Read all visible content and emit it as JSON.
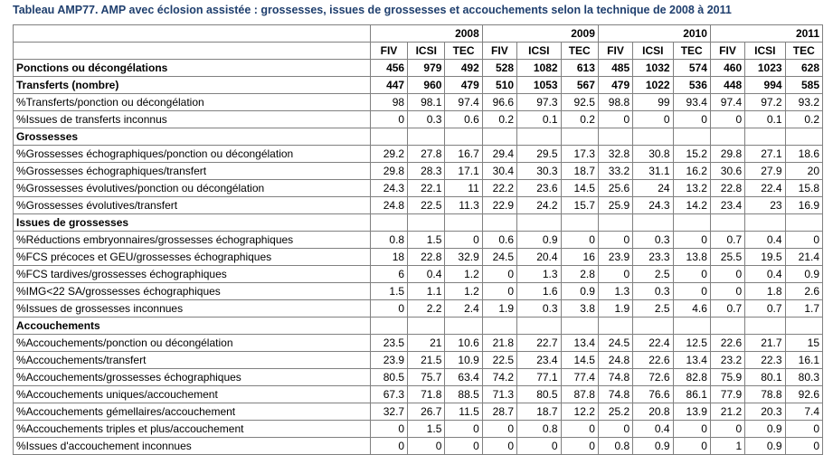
{
  "title": "Tableau AMP77. AMP avec éclosion assistée : grossesses, issues de grossesses et accouchements selon la technique de 2008 à 2011",
  "years": [
    "2008",
    "2009",
    "2010",
    "2011"
  ],
  "techniques": [
    "FIV",
    "ICSI",
    "TEC"
  ],
  "rows": [
    {
      "label": "Ponctions ou décongélations",
      "bold": true,
      "values": [
        "456",
        "979",
        "492",
        "528",
        "1082",
        "613",
        "485",
        "1032",
        "574",
        "460",
        "1023",
        "628"
      ]
    },
    {
      "label": "Transferts (nombre)",
      "bold": true,
      "values": [
        "447",
        "960",
        "479",
        "510",
        "1053",
        "567",
        "479",
        "1022",
        "536",
        "448",
        "994",
        "585"
      ]
    },
    {
      "label": "%Transferts/ponction ou décongélation",
      "values": [
        "98",
        "98.1",
        "97.4",
        "96.6",
        "97.3",
        "92.5",
        "98.8",
        "99",
        "93.4",
        "97.4",
        "97.2",
        "93.2"
      ]
    },
    {
      "label": "%Issues de transferts inconnus",
      "values": [
        "0",
        "0.3",
        "0.6",
        "0.2",
        "0.1",
        "0.2",
        "0",
        "0",
        "0",
        "0",
        "0.1",
        "0.2"
      ]
    },
    {
      "label": "Grossesses",
      "section": true,
      "values": [
        "",
        "",
        "",
        "",
        "",
        "",
        "",
        "",
        "",
        "",
        "",
        ""
      ]
    },
    {
      "label": "%Grossesses échographiques/ponction ou décongélation",
      "values": [
        "29.2",
        "27.8",
        "16.7",
        "29.4",
        "29.5",
        "17.3",
        "32.8",
        "30.8",
        "15.2",
        "29.8",
        "27.1",
        "18.6"
      ]
    },
    {
      "label": "%Grossesses échographiques/transfert",
      "values": [
        "29.8",
        "28.3",
        "17.1",
        "30.4",
        "30.3",
        "18.7",
        "33.2",
        "31.1",
        "16.2",
        "30.6",
        "27.9",
        "20"
      ]
    },
    {
      "label": "%Grossesses évolutives/ponction ou décongélation",
      "values": [
        "24.3",
        "22.1",
        "11",
        "22.2",
        "23.6",
        "14.5",
        "25.6",
        "24",
        "13.2",
        "22.8",
        "22.4",
        "15.8"
      ]
    },
    {
      "label": "%Grossesses évolutives/transfert",
      "values": [
        "24.8",
        "22.5",
        "11.3",
        "22.9",
        "24.2",
        "15.7",
        "25.9",
        "24.3",
        "14.2",
        "23.4",
        "23",
        "16.9"
      ]
    },
    {
      "label": "Issues de grossesses",
      "section": true,
      "values": [
        "",
        "",
        "",
        "",
        "",
        "",
        "",
        "",
        "",
        "",
        "",
        ""
      ]
    },
    {
      "label": "%Réductions embryonnaires/grossesses échographiques",
      "values": [
        "0.8",
        "1.5",
        "0",
        "0.6",
        "0.9",
        "0",
        "0",
        "0.3",
        "0",
        "0.7",
        "0.4",
        "0"
      ]
    },
    {
      "label": "%FCS précoces et GEU/grossesses échographiques",
      "values": [
        "18",
        "22.8",
        "32.9",
        "24.5",
        "20.4",
        "16",
        "23.9",
        "23.3",
        "13.8",
        "25.5",
        "19.5",
        "21.4"
      ]
    },
    {
      "label": "%FCS tardives/grossesses échographiques",
      "values": [
        "6",
        "0.4",
        "1.2",
        "0",
        "1.3",
        "2.8",
        "0",
        "2.5",
        "0",
        "0",
        "0.4",
        "0.9"
      ]
    },
    {
      "label": "%IMG<22 SA/grossesses échographiques",
      "values": [
        "1.5",
        "1.1",
        "1.2",
        "0",
        "1.6",
        "0.9",
        "1.3",
        "0.3",
        "0",
        "0",
        "1.8",
        "2.6"
      ]
    },
    {
      "label": "%Issues de grossesses inconnues",
      "values": [
        "0",
        "2.2",
        "2.4",
        "1.9",
        "0.3",
        "3.8",
        "1.9",
        "2.5",
        "4.6",
        "0.7",
        "0.7",
        "1.7"
      ]
    },
    {
      "label": "Accouchements",
      "section": true,
      "values": [
        "",
        "",
        "",
        "",
        "",
        "",
        "",
        "",
        "",
        "",
        "",
        ""
      ]
    },
    {
      "label": "%Accouchements/ponction ou décongélation",
      "values": [
        "23.5",
        "21",
        "10.6",
        "21.8",
        "22.7",
        "13.4",
        "24.5",
        "22.4",
        "12.5",
        "22.6",
        "21.7",
        "15"
      ]
    },
    {
      "label": "%Accouchements/transfert",
      "values": [
        "23.9",
        "21.5",
        "10.9",
        "22.5",
        "23.4",
        "14.5",
        "24.8",
        "22.6",
        "13.4",
        "23.2",
        "22.3",
        "16.1"
      ]
    },
    {
      "label": "%Accouchements/grossesses échographiques",
      "values": [
        "80.5",
        "75.7",
        "63.4",
        "74.2",
        "77.1",
        "77.4",
        "74.8",
        "72.6",
        "82.8",
        "75.9",
        "80.1",
        "80.3"
      ]
    },
    {
      "label": "%Accouchements uniques/accouchement",
      "values": [
        "67.3",
        "71.8",
        "88.5",
        "71.3",
        "80.5",
        "87.8",
        "74.8",
        "76.6",
        "86.1",
        "77.9",
        "78.8",
        "92.6"
      ]
    },
    {
      "label": "%Accouchements gémellaires/accouchement",
      "values": [
        "32.7",
        "26.7",
        "11.5",
        "28.7",
        "18.7",
        "12.2",
        "25.2",
        "20.8",
        "13.9",
        "21.2",
        "20.3",
        "7.4"
      ]
    },
    {
      "label": "%Accouchements triples et plus/accouchement",
      "values": [
        "0",
        "1.5",
        "0",
        "0",
        "0.8",
        "0",
        "0",
        "0.4",
        "0",
        "0",
        "0.9",
        "0"
      ]
    },
    {
      "label": "%Issues d'accouchement inconnues",
      "values": [
        "0",
        "0",
        "0",
        "0",
        "0",
        "0",
        "0.8",
        "0.9",
        "0",
        "1",
        "0.9",
        "0"
      ]
    }
  ]
}
